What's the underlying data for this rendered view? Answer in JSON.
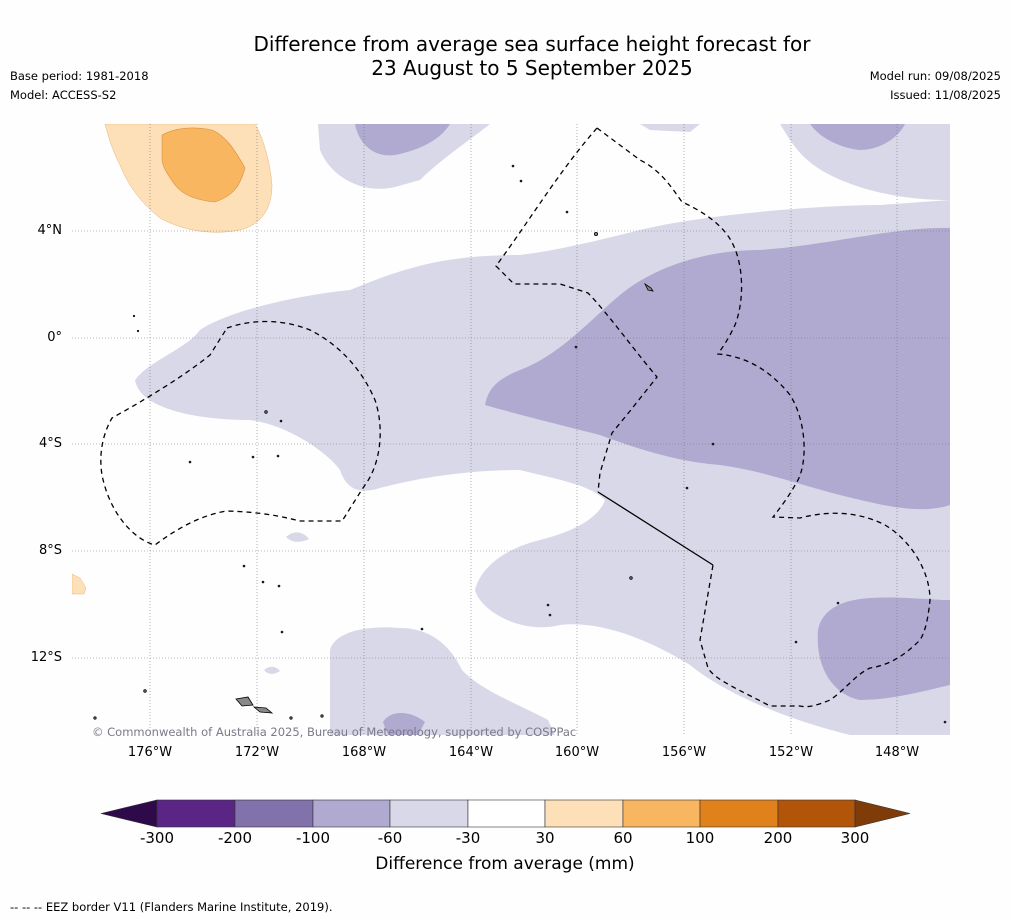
{
  "title_line1": "Difference from average sea surface height forecast for",
  "title_line2": "23 August to 5 September 2025",
  "meta": {
    "base_period": "Base period: 1981-2018",
    "model": "Model: ACCESS-S2",
    "model_run": "Model run: 09/08/2025",
    "issued": "Issued: 11/08/2025"
  },
  "axes": {
    "lat_labels": [
      "4°N",
      "0°",
      "4°S",
      "8°S",
      "12°S"
    ],
    "lon_labels": [
      "176°W",
      "172°W",
      "168°W",
      "164°W",
      "160°W",
      "156°W",
      "152°W",
      "148°W"
    ]
  },
  "copyright": "© Commonwealth of Australia 2025, Bureau of Meteorology, supported by COSPPac",
  "colorbar": {
    "ticks": [
      "-300",
      "-200",
      "-100",
      "-60",
      "-30",
      "30",
      "60",
      "100",
      "200",
      "300"
    ],
    "colors": [
      "#2e0a4a",
      "#5a2585",
      "#8272ab",
      "#b0a9d0",
      "#d8d8e9",
      "#ffffff",
      "#fde0b8",
      "#f9b660",
      "#e0821b",
      "#b25509",
      "#7f3b08"
    ],
    "label": "Difference from average (mm)"
  },
  "legend": {
    "eez_line": "-- -- -- EEZ border V11 (Flanders Marine Institute, 2019)."
  }
}
